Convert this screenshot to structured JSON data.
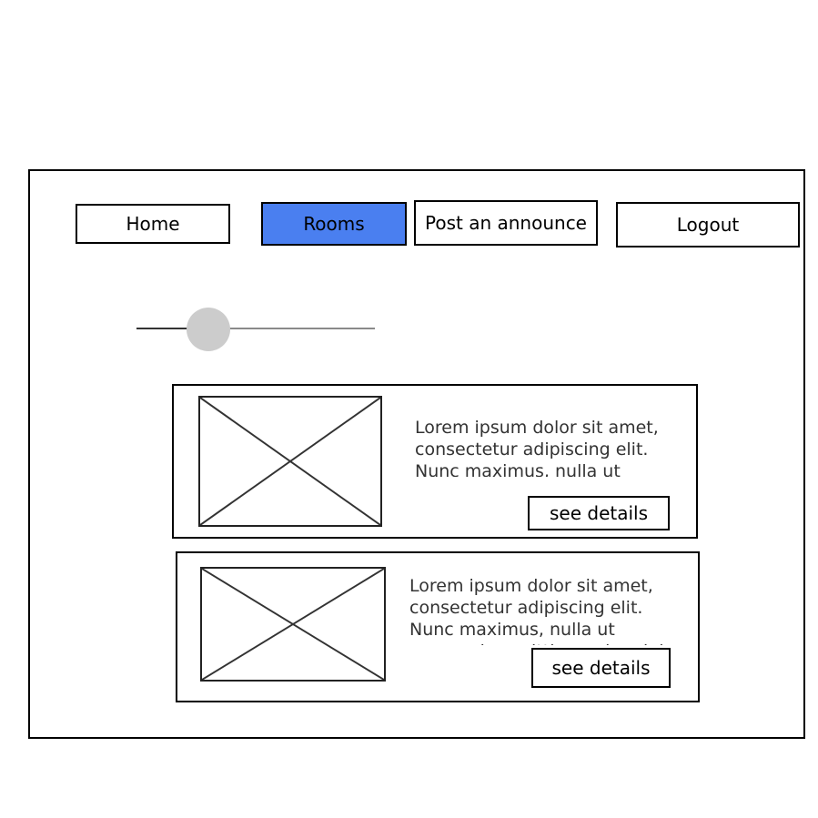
{
  "nav": {
    "home": "Home",
    "rooms": "Rooms",
    "post": "Post an announce",
    "logout": "Logout",
    "active_color": "#4a7ff0"
  },
  "slider": {
    "value_fraction": 0.3
  },
  "listings": [
    {
      "description": "Lorem ipsum dolor sit amet, consectetur adipiscing elit. Nunc maximus, nulla ut commodo sagittis, sapien dui mattis dui",
      "details_label": "see details"
    },
    {
      "description": "Lorem ipsum dolor sit amet, consectetur adipiscing elit. Nunc maximus, nulla ut commodo sagittis, sapien dui mattis dui",
      "details_label": "see details"
    }
  ]
}
